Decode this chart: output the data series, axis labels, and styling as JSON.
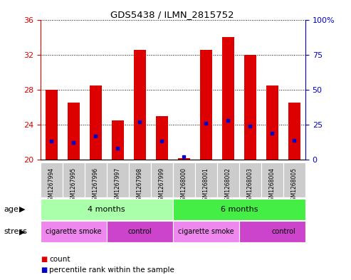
{
  "title": "GDS5438 / ILMN_2815752",
  "samples": [
    "GSM1267994",
    "GSM1267995",
    "GSM1267996",
    "GSM1267997",
    "GSM1267998",
    "GSM1267999",
    "GSM1268000",
    "GSM1268001",
    "GSM1268002",
    "GSM1268003",
    "GSM1268004",
    "GSM1268005"
  ],
  "count_values": [
    28.0,
    26.5,
    28.5,
    24.5,
    32.5,
    25.0,
    20.2,
    32.5,
    34.0,
    32.0,
    28.5,
    26.5
  ],
  "percentile_pct": [
    13,
    12,
    17,
    8,
    27,
    13,
    2,
    26,
    28,
    24,
    19,
    14
  ],
  "ylim_left": [
    20,
    36
  ],
  "ylim_right": [
    0,
    100
  ],
  "yticks_left": [
    20,
    24,
    28,
    32,
    36
  ],
  "yticks_right": [
    0,
    25,
    50,
    75,
    100
  ],
  "bar_color": "#dd0000",
  "dot_color": "#0000cc",
  "age_4_color": "#aaffaa",
  "age_6_color": "#44ee44",
  "stress_smoke_color": "#ee88ee",
  "stress_control_color": "#cc44cc",
  "grid_color": "#000000",
  "tick_bg_color": "#cccccc"
}
